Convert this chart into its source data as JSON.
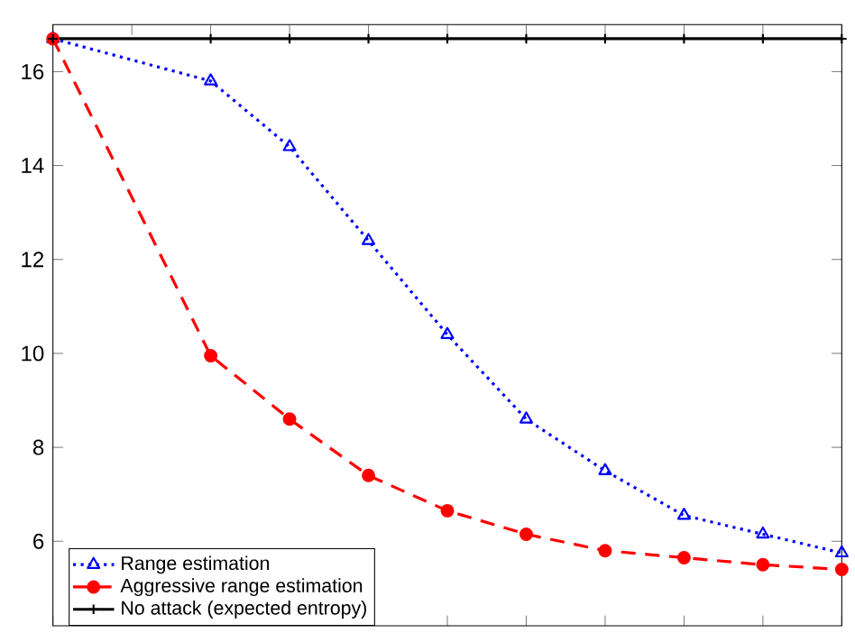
{
  "chart_data": {
    "type": "line",
    "categories": [
      null,
      null,
      null,
      null,
      null,
      null,
      null,
      null,
      null,
      null,
      null
    ],
    "ylim": [
      4.2,
      17
    ],
    "yticks": [
      6,
      8,
      10,
      12,
      14,
      16
    ],
    "tick_labels": "y",
    "legend": "bottom left",
    "series": [
      {
        "name": "Range estimation",
        "color": "#0000ff",
        "marker": "triangle",
        "line_style": "dotted",
        "values": [
          16.7,
          null,
          15.8,
          14.4,
          12.4,
          10.4,
          8.6,
          7.5,
          6.55,
          6.15,
          5.75
        ]
      },
      {
        "name": "Aggressive range estimation",
        "color": "#ff0000",
        "marker": "circle",
        "line_style": "dashed",
        "values": [
          16.7,
          null,
          9.95,
          8.6,
          7.4,
          6.65,
          6.15,
          5.8,
          5.65,
          5.5,
          5.4
        ]
      },
      {
        "name": "No attack (expected entropy)",
        "color": "#000000",
        "marker": "cross",
        "line_style": "solid",
        "values": [
          16.7,
          null,
          16.7,
          16.7,
          16.7,
          16.7,
          16.7,
          16.7,
          16.7,
          16.7,
          16.7
        ]
      }
    ]
  }
}
